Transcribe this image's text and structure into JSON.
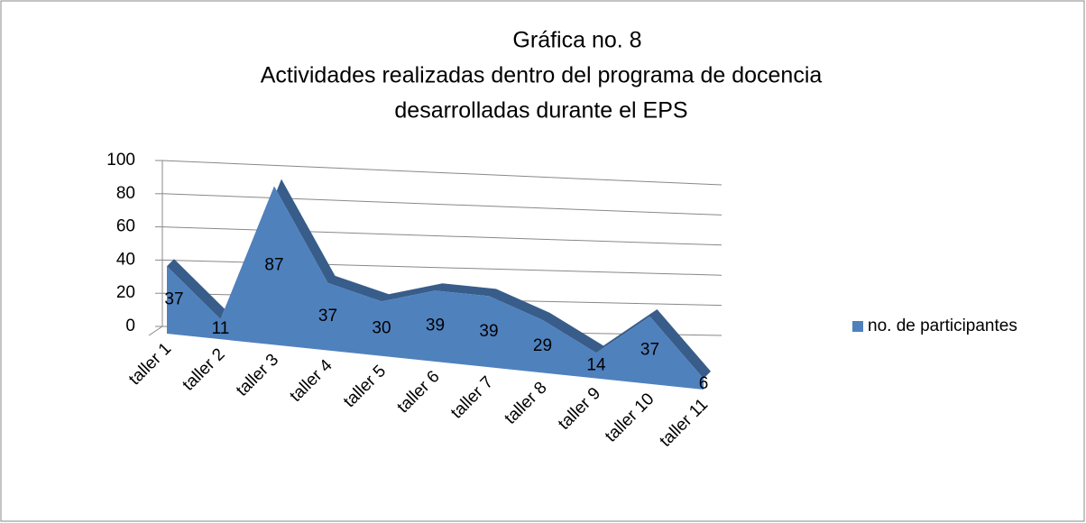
{
  "chart_data": {
    "type": "area3d",
    "title": [
      "Gráfica no. 8",
      "Actividades realizadas dentro del programa de docencia",
      "desarrolladas durante el EPS"
    ],
    "categories": [
      "taller 1",
      "taller 2",
      "taller 3",
      "taller 4",
      "taller 5",
      "taller 6",
      "taller 7",
      "taller 8",
      "taller 9",
      "taller 10",
      "taller 11"
    ],
    "series": [
      {
        "name": "no. de participantes",
        "color": "#4f81bd",
        "values": [
          37,
          11,
          87,
          37,
          30,
          39,
          39,
          29,
          14,
          37,
          6
        ]
      }
    ],
    "ylim": [
      0,
      100
    ],
    "yticks": [
      0,
      20,
      40,
      60,
      80,
      100
    ],
    "grid": true,
    "legend": "right"
  }
}
